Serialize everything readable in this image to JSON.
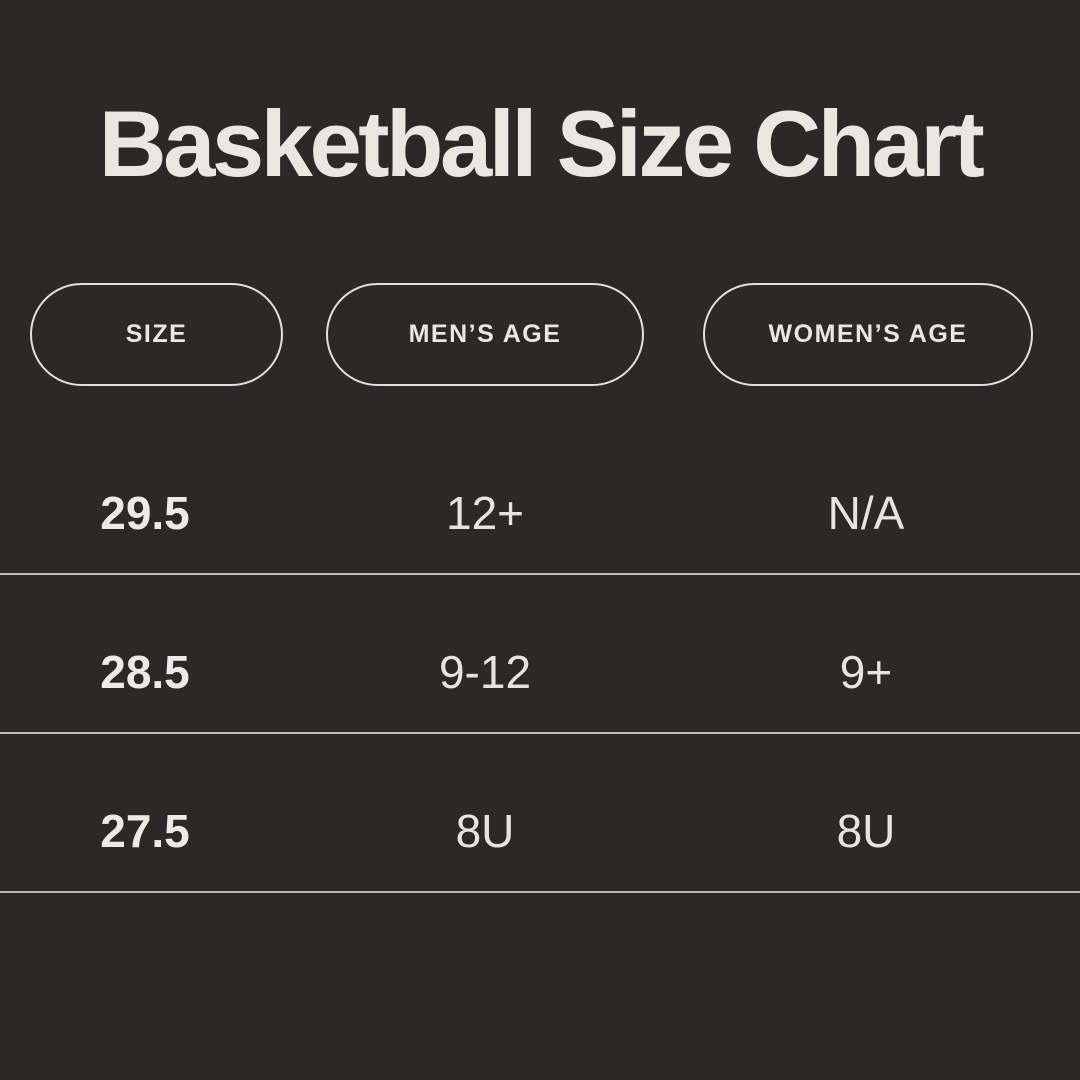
{
  "colors": {
    "background": "#2a2928",
    "text": "#e9e7e0",
    "pill_border": "#e2e0d9",
    "divider": "#bdbbb6"
  },
  "chart_data": {
    "type": "table",
    "title": "Basketball Size Chart",
    "columns": [
      "SIZE",
      "MEN’S AGE",
      "WOMEN’S AGE"
    ],
    "rows": [
      [
        "29.5",
        "12+",
        "N/A"
      ],
      [
        "28.5",
        "9-12",
        "9+"
      ],
      [
        "27.5",
        "8U",
        "8U"
      ]
    ],
    "layout": {
      "column_header_style": "outlined-pill",
      "row_dividers": true,
      "theme": "dark"
    }
  }
}
